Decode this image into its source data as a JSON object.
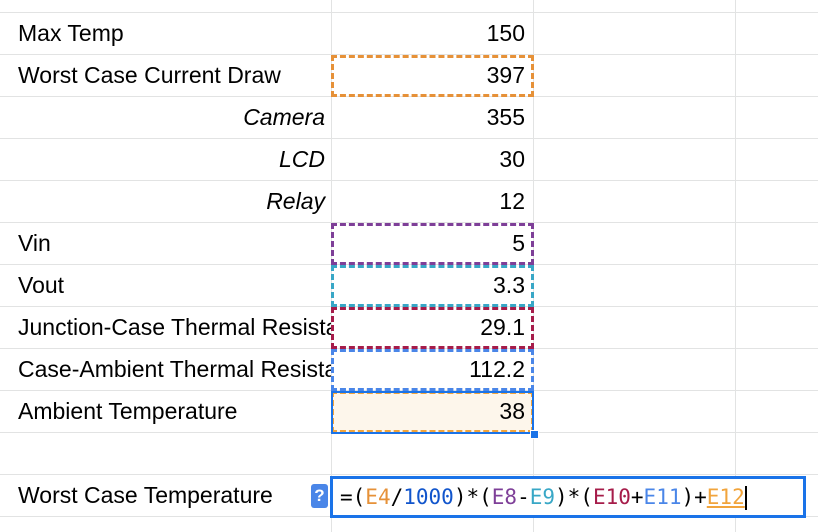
{
  "rows": [
    {
      "label": "Max Temp",
      "value": "150",
      "style": "normal"
    },
    {
      "label": "Worst Case Current Draw",
      "value": "397",
      "style": "normal"
    },
    {
      "label": "Camera",
      "value": "355",
      "style": "sub"
    },
    {
      "label": "LCD",
      "value": "30",
      "style": "sub"
    },
    {
      "label": "Relay",
      "value": "12",
      "style": "sub"
    },
    {
      "label": "Vin",
      "value": "5",
      "style": "normal"
    },
    {
      "label": "Vout",
      "value": "3.3",
      "style": "normal"
    },
    {
      "label": "Junction-Case Thermal Resistance",
      "value": "29.1",
      "style": "normal"
    },
    {
      "label": "Case-Ambient Thermal Resistance",
      "value": "112.2",
      "style": "normal"
    },
    {
      "label": "Ambient Temperature",
      "value": "38",
      "style": "normal"
    }
  ],
  "result_row": {
    "label": "Worst Case Temperature"
  },
  "formula": {
    "help_badge": "?",
    "tokens": [
      {
        "text": "=(",
        "ref": "op"
      },
      {
        "text": "E4",
        "ref": "E4"
      },
      {
        "text": "/",
        "ref": "op"
      },
      {
        "text": "1000",
        "ref": "num"
      },
      {
        "text": ")*(",
        "ref": "op"
      },
      {
        "text": "E8",
        "ref": "E8"
      },
      {
        "text": "-",
        "ref": "op"
      },
      {
        "text": "E9",
        "ref": "E9"
      },
      {
        "text": ")*(",
        "ref": "op"
      },
      {
        "text": "E10",
        "ref": "E10"
      },
      {
        "text": "+",
        "ref": "op"
      },
      {
        "text": "E11",
        "ref": "E11"
      },
      {
        "text": ")+",
        "ref": "op"
      },
      {
        "text": "E12",
        "ref": "E12"
      }
    ]
  },
  "reference_colors": {
    "E4": "#e69138",
    "E8": "#7e3f98",
    "E9": "#38a7c6",
    "E10": "#a61c4a",
    "E11": "#4a86e8",
    "E12": "#f1a43c"
  }
}
